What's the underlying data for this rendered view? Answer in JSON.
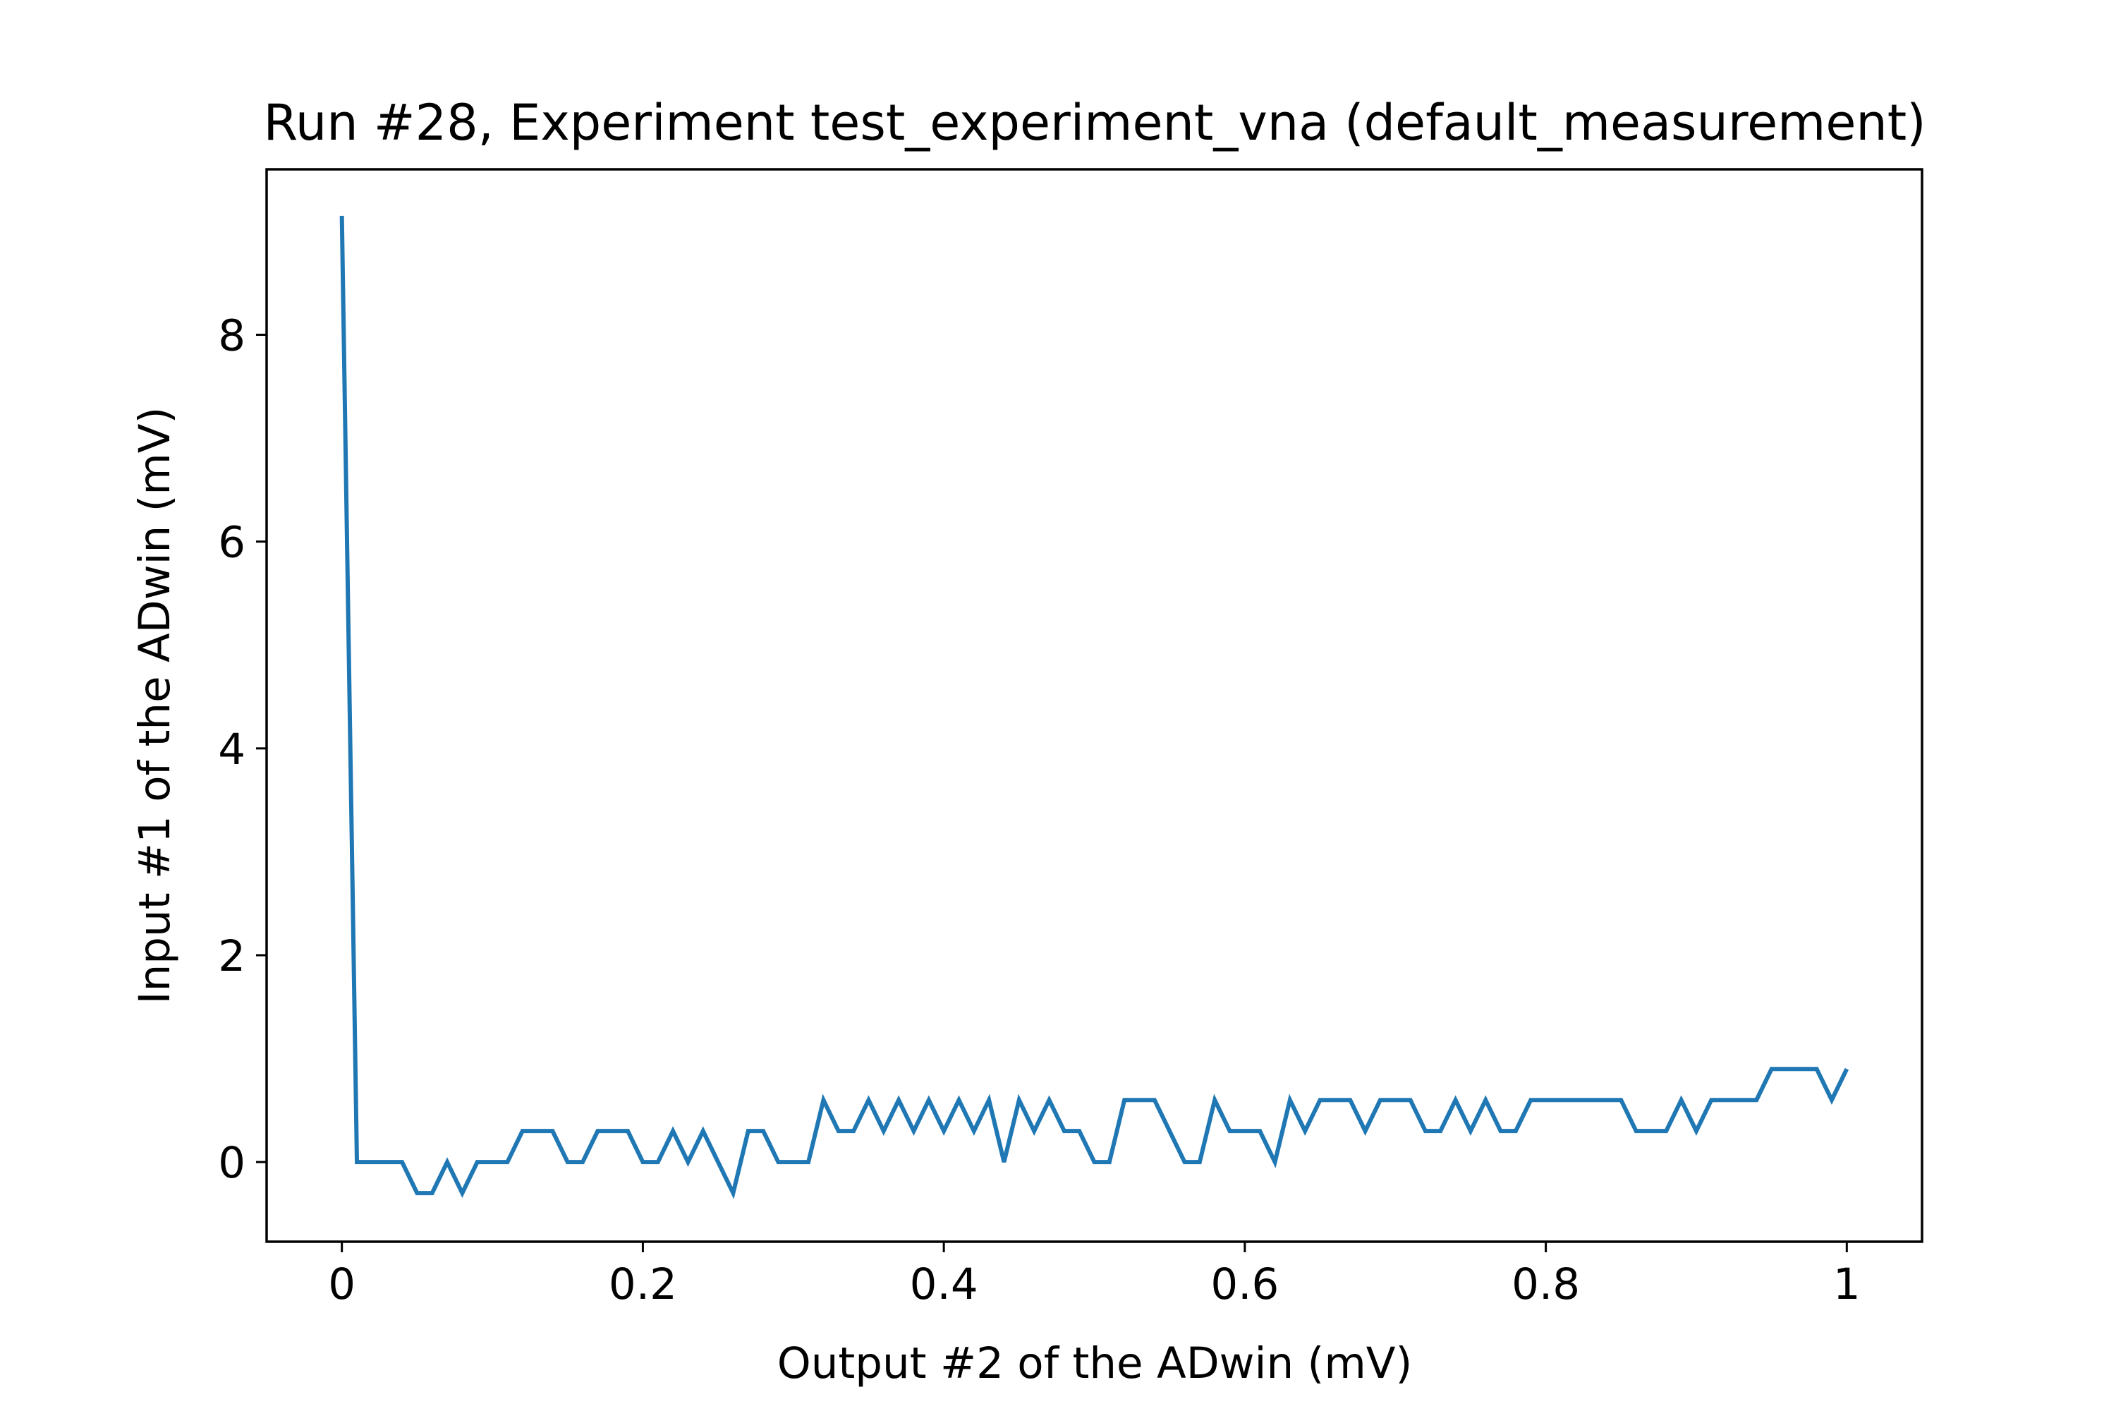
{
  "chart_data": {
    "type": "line",
    "title": "Run #28, Experiment test_experiment_vna (default_measurement)",
    "xlabel": "Output #2 of the ADwin (mV)",
    "ylabel": "Input #1 of the ADwin (mV)",
    "xlim": [
      -0.05,
      1.05
    ],
    "ylim": [
      -0.77,
      9.6
    ],
    "xticks": [
      0,
      0.2,
      0.4,
      0.6,
      0.8,
      1
    ],
    "xtick_labels": [
      "0",
      "0.2",
      "0.4",
      "0.6",
      "0.8",
      "1"
    ],
    "yticks": [
      0,
      2,
      4,
      6,
      8
    ],
    "ytick_labels": [
      "0",
      "2",
      "4",
      "6",
      "8"
    ],
    "grid": false,
    "series": [
      {
        "color": "#1f77b4",
        "x": [
          0.0,
          0.01,
          0.02,
          0.03,
          0.04,
          0.05,
          0.06,
          0.07,
          0.08,
          0.09,
          0.1,
          0.11,
          0.12,
          0.13,
          0.14,
          0.15,
          0.16,
          0.17,
          0.18,
          0.19,
          0.2,
          0.21,
          0.22,
          0.23,
          0.24,
          0.25,
          0.26,
          0.27,
          0.28,
          0.29,
          0.3,
          0.31,
          0.32,
          0.33,
          0.34,
          0.35,
          0.36,
          0.37,
          0.38,
          0.39,
          0.4,
          0.41,
          0.42,
          0.43,
          0.44,
          0.45,
          0.46,
          0.47,
          0.48,
          0.49,
          0.5,
          0.51,
          0.52,
          0.53,
          0.54,
          0.55,
          0.56,
          0.57,
          0.58,
          0.59,
          0.6,
          0.61,
          0.62,
          0.63,
          0.64,
          0.65,
          0.66,
          0.67,
          0.68,
          0.69,
          0.7,
          0.71,
          0.72,
          0.73,
          0.74,
          0.75,
          0.76,
          0.77,
          0.78,
          0.79,
          0.8,
          0.81,
          0.82,
          0.83,
          0.84,
          0.85,
          0.86,
          0.87,
          0.88,
          0.89,
          0.9,
          0.91,
          0.92,
          0.93,
          0.94,
          0.95,
          0.96,
          0.97,
          0.98,
          0.99,
          1.0
        ],
        "y": [
          9.15,
          0.0,
          0.0,
          0.0,
          0.0,
          -0.3,
          -0.3,
          0.0,
          -0.3,
          0.0,
          0.0,
          0.0,
          0.3,
          0.3,
          0.3,
          0.0,
          0.0,
          0.3,
          0.3,
          0.3,
          0.0,
          0.0,
          0.3,
          0.0,
          0.3,
          0.0,
          -0.3,
          0.3,
          0.3,
          0.0,
          0.0,
          0.0,
          0.6,
          0.3,
          0.3,
          0.6,
          0.3,
          0.6,
          0.3,
          0.6,
          0.3,
          0.6,
          0.3,
          0.6,
          0.0,
          0.6,
          0.3,
          0.6,
          0.3,
          0.3,
          0.0,
          0.0,
          0.6,
          0.6,
          0.6,
          0.3,
          0.0,
          0.0,
          0.6,
          0.3,
          0.3,
          0.3,
          0.0,
          0.6,
          0.3,
          0.6,
          0.6,
          0.6,
          0.3,
          0.6,
          0.6,
          0.6,
          0.3,
          0.3,
          0.6,
          0.3,
          0.6,
          0.3,
          0.3,
          0.6,
          0.6,
          0.6,
          0.6,
          0.6,
          0.6,
          0.6,
          0.3,
          0.3,
          0.3,
          0.6,
          0.3,
          0.6,
          0.6,
          0.6,
          0.6,
          0.9,
          0.9,
          0.9,
          0.9,
          0.6,
          0.9
        ]
      }
    ]
  }
}
